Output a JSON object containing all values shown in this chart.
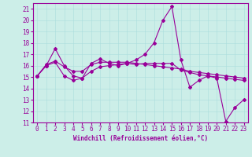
{
  "xlabel": "Windchill (Refroidissement éolien,°C)",
  "bg_color": "#cceee8",
  "line_color": "#990099",
  "xlim": [
    -0.5,
    23.5
  ],
  "ylim": [
    11,
    21.5
  ],
  "yticks": [
    11,
    12,
    13,
    14,
    15,
    16,
    17,
    18,
    19,
    20,
    21
  ],
  "xticks": [
    0,
    1,
    2,
    3,
    4,
    5,
    6,
    7,
    8,
    9,
    10,
    11,
    12,
    13,
    14,
    15,
    16,
    17,
    18,
    19,
    20,
    21,
    22,
    23
  ],
  "series1_x": [
    0,
    1,
    2,
    3,
    4,
    5,
    6,
    7,
    8,
    9,
    10,
    11,
    12,
    13,
    14,
    15,
    16,
    17,
    18,
    19,
    20,
    21,
    22,
    23
  ],
  "series1_y": [
    15.1,
    16.0,
    16.3,
    15.1,
    14.7,
    14.9,
    15.5,
    15.9,
    16.0,
    16.1,
    16.2,
    16.5,
    17.0,
    18.0,
    20.0,
    21.2,
    16.5,
    14.1,
    14.7,
    15.1,
    14.9,
    11.1,
    12.3,
    13.0
  ],
  "series2_x": [
    0,
    1,
    2,
    3,
    4,
    5,
    6,
    7,
    8,
    9,
    10,
    11,
    12,
    13,
    14,
    15,
    16,
    17,
    18,
    19,
    20,
    21,
    22,
    23
  ],
  "series2_y": [
    15.1,
    16.0,
    17.5,
    16.0,
    15.1,
    14.9,
    16.2,
    16.6,
    16.2,
    16.0,
    16.2,
    16.1,
    16.2,
    16.2,
    16.2,
    16.2,
    15.6,
    15.4,
    15.2,
    15.1,
    15.0,
    14.9,
    14.8,
    14.7
  ],
  "series3_x": [
    0,
    1,
    2,
    3,
    4,
    5,
    6,
    7,
    8,
    9,
    10,
    11,
    12,
    13,
    14,
    15,
    16,
    17,
    18,
    19,
    20,
    21,
    22,
    23
  ],
  "series3_y": [
    15.1,
    16.1,
    16.4,
    15.9,
    15.5,
    15.5,
    16.1,
    16.3,
    16.3,
    16.3,
    16.3,
    16.2,
    16.1,
    16.0,
    15.9,
    15.8,
    15.7,
    15.5,
    15.4,
    15.3,
    15.2,
    15.1,
    15.0,
    14.9
  ],
  "tick_fontsize": 5.5,
  "xlabel_fontsize": 5.5,
  "marker_size": 2.0,
  "linewidth": 0.8
}
